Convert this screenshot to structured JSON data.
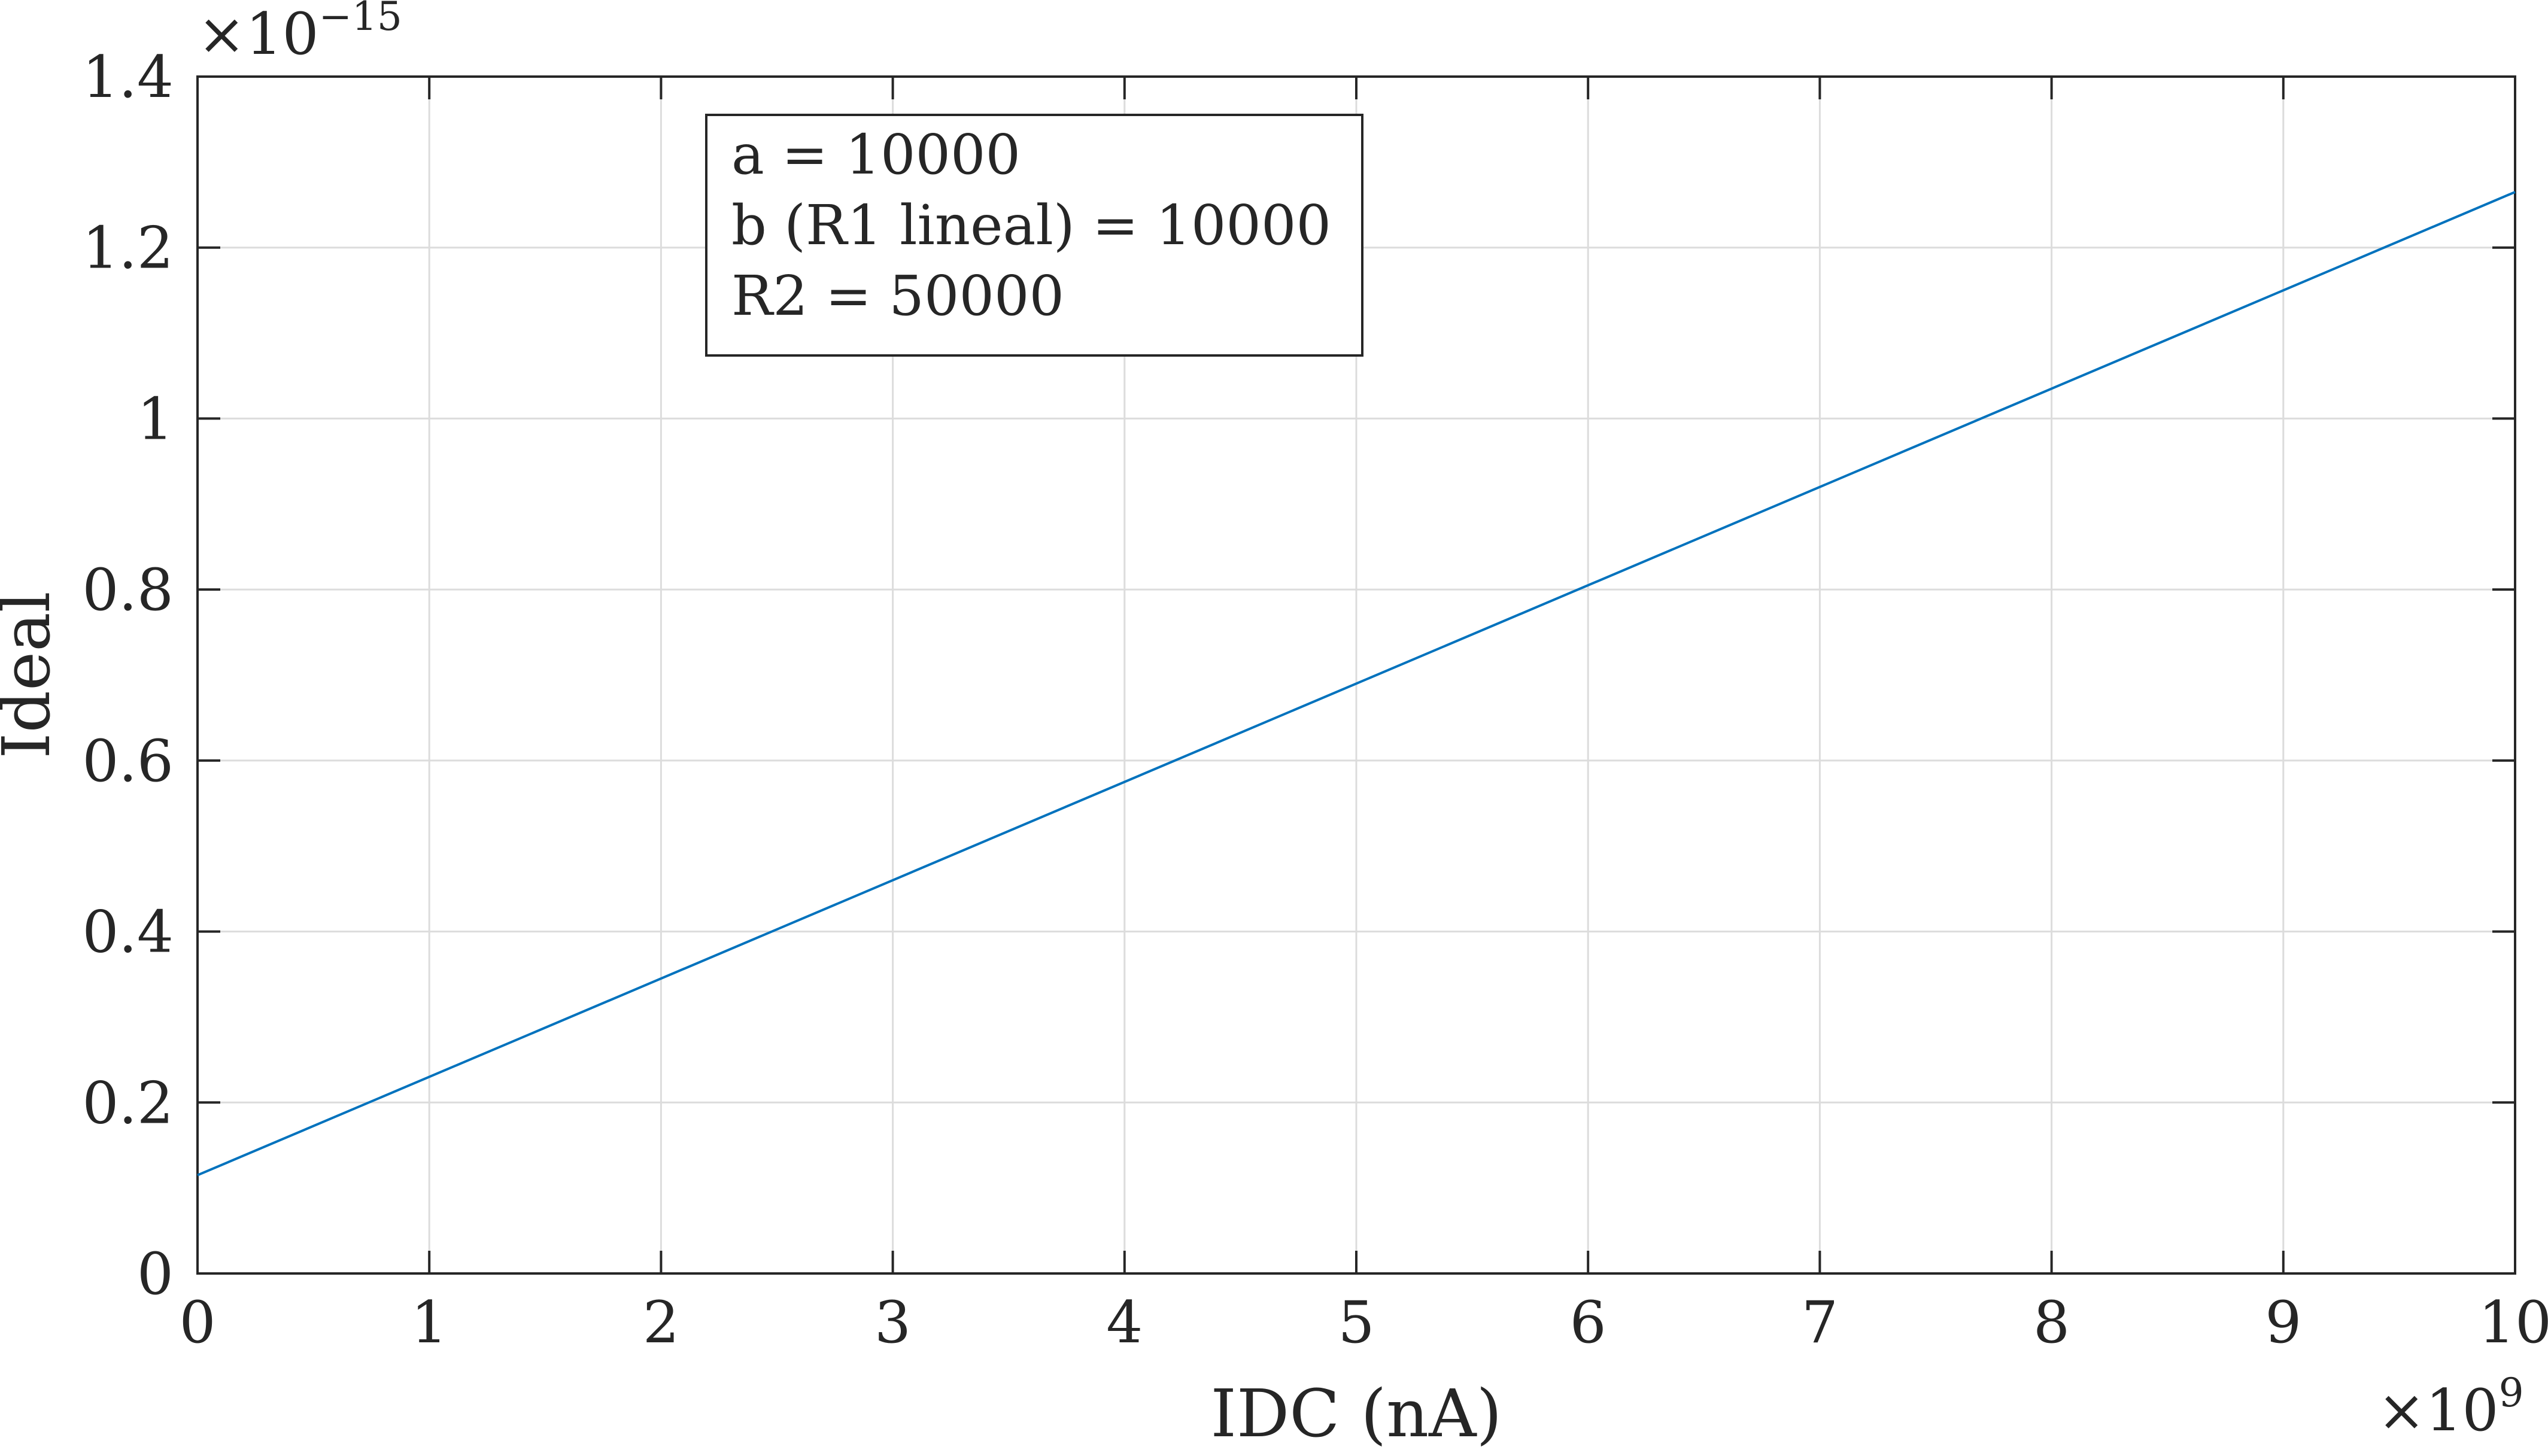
{
  "chart_data": {
    "type": "line",
    "title": "",
    "xlabel": "IDC (nA)",
    "ylabel": "Ideal",
    "x_multiplier": "×10",
    "x_multiplier_exp": "9",
    "y_multiplier": "×10",
    "y_multiplier_exp": "−15",
    "xlim": [
      0,
      10
    ],
    "ylim": [
      0,
      1.4
    ],
    "xticks": [
      "0",
      "1",
      "2",
      "3",
      "4",
      "5",
      "6",
      "7",
      "8",
      "9",
      "10"
    ],
    "yticks": [
      "0",
      "0.2",
      "0.4",
      "0.6",
      "0.8",
      "1",
      "1.2",
      "1.4"
    ],
    "grid": true,
    "series": [
      {
        "color": "#0072BD",
        "x": [
          0,
          10
        ],
        "y": [
          0.115,
          1.265
        ]
      }
    ],
    "annotation": {
      "lines": [
        "a = 10000",
        "b (R1 lineal) = 10000",
        "R2 = 50000"
      ],
      "placement": "top-left"
    }
  }
}
